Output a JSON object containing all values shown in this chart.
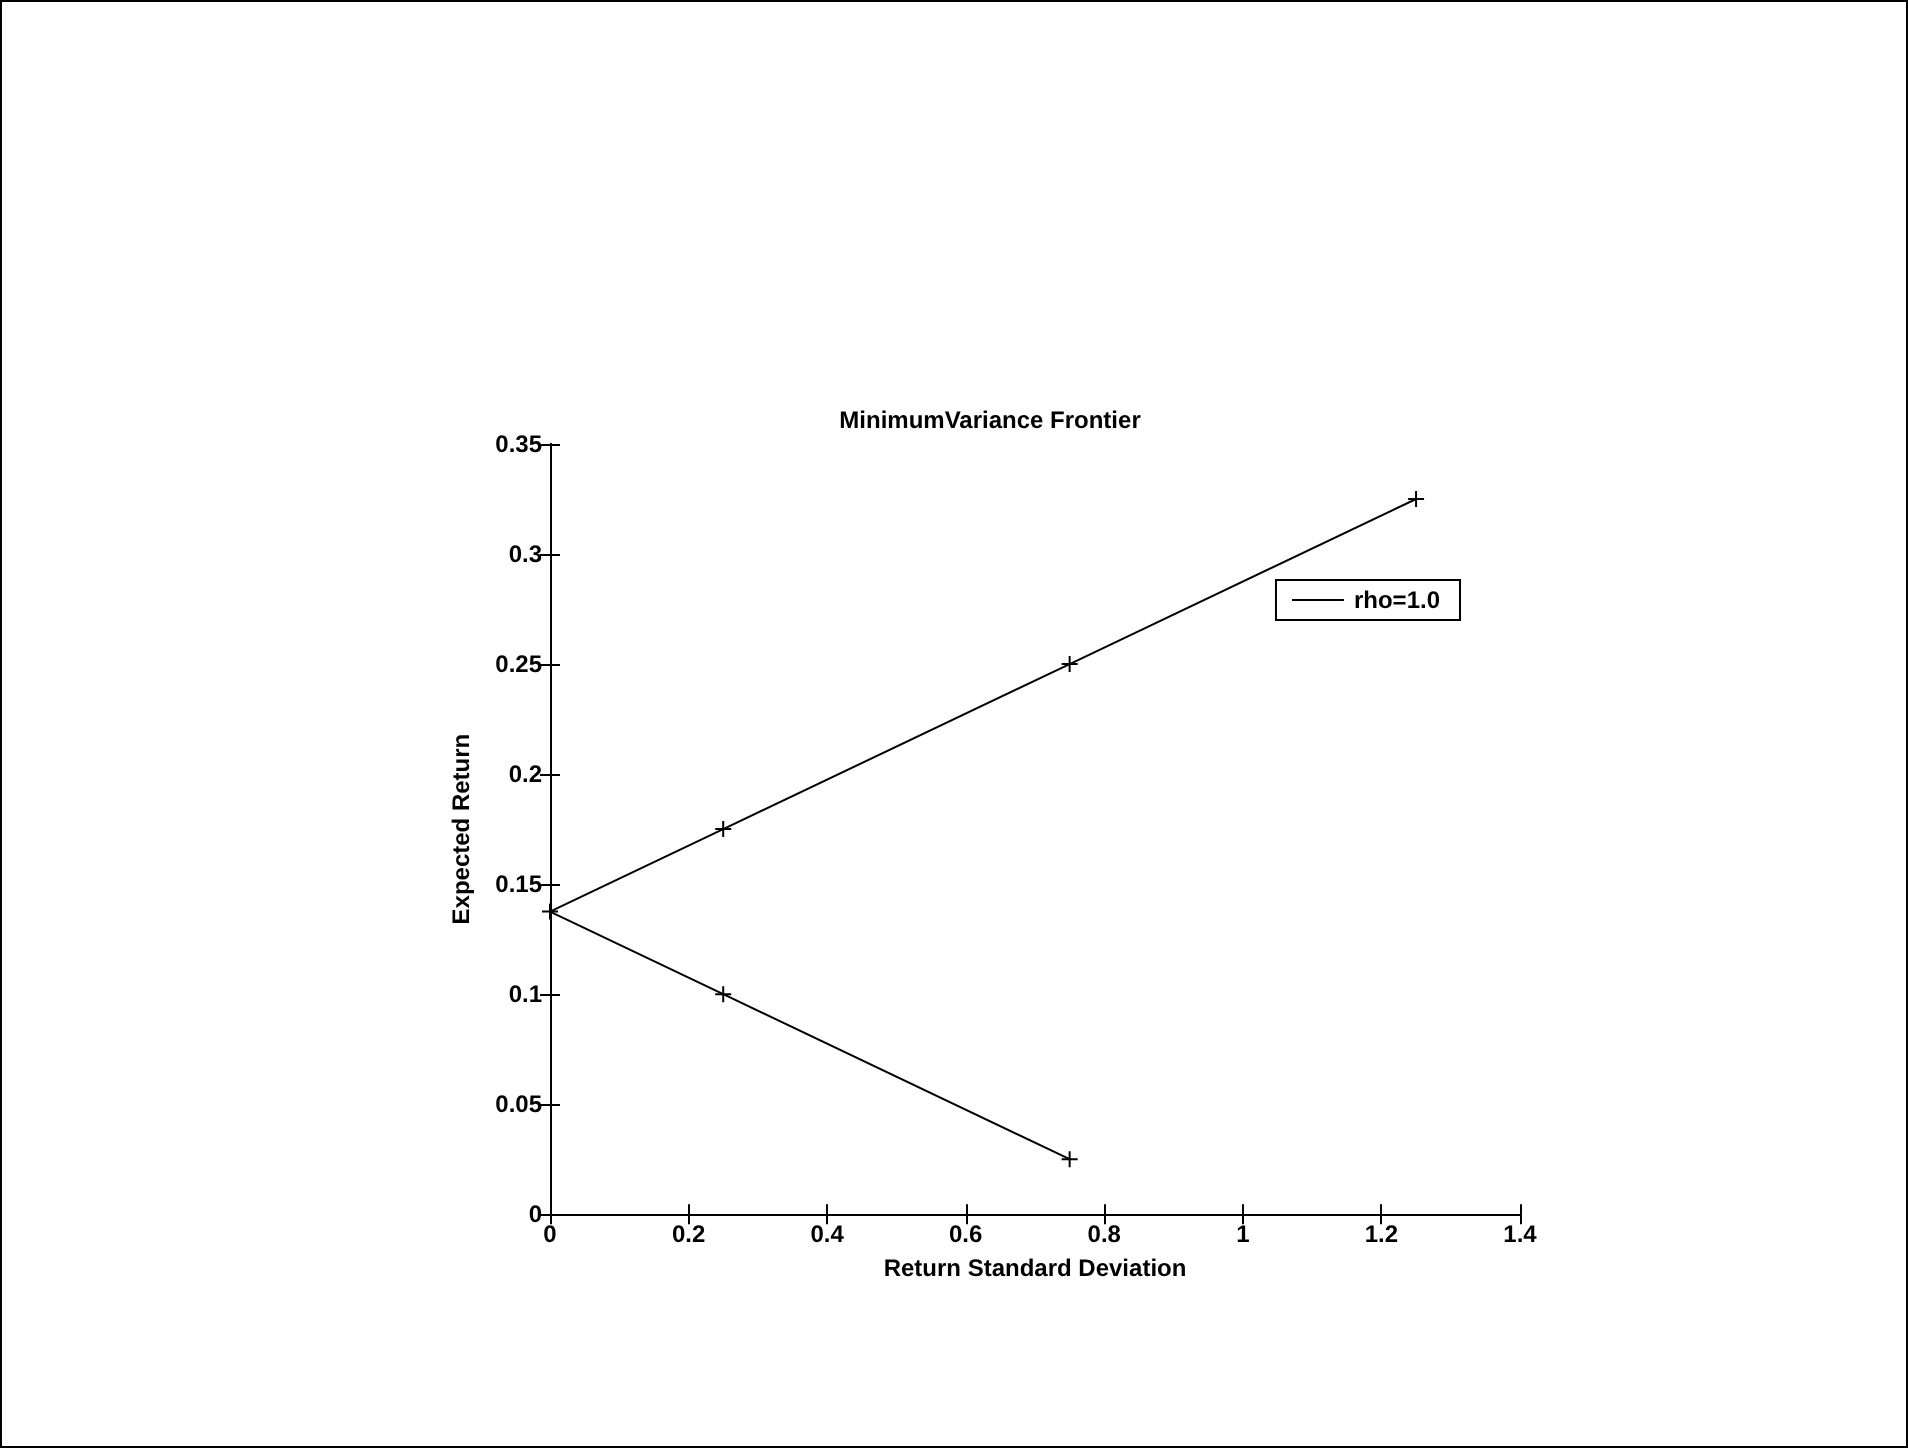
{
  "chart_data": {
    "type": "line",
    "title": "MinimumVariance Frontier",
    "xlabel": "Return Standard Deviation",
    "ylabel": "Expected Return",
    "series": [
      {
        "name": "rho=1.0",
        "color": "#000000",
        "x": [
          0.75,
          0.25,
          0,
          0.25,
          0.75,
          1.25
        ],
        "values": [
          0.025,
          0.1,
          0.1375,
          0.175,
          0.25,
          0.325
        ]
      }
    ],
    "xlim": [
      0,
      1.4
    ],
    "xticks": [
      0,
      0.2,
      0.4,
      0.6,
      0.8,
      1,
      1.2,
      1.4
    ],
    "ylim": [
      0,
      0.35
    ],
    "yticks": [
      0,
      0.05,
      0.1,
      0.15,
      0.2,
      0.25,
      0.3,
      0.35
    ],
    "marker": "cross",
    "line_style": "solid",
    "grid": false,
    "legend": "top right"
  }
}
